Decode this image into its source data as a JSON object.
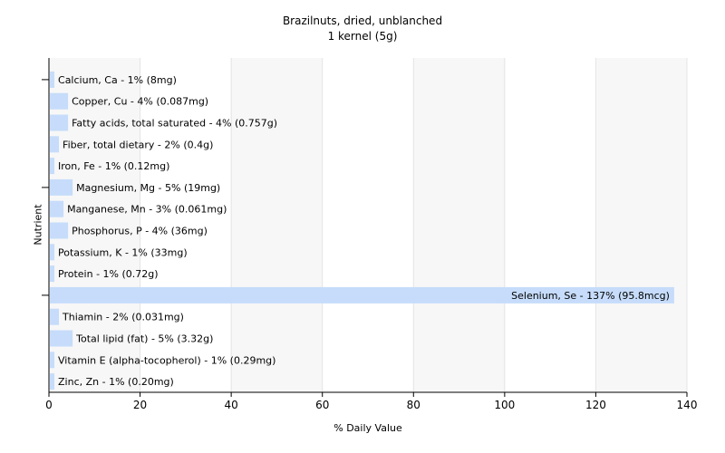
{
  "chart_data": {
    "type": "bar",
    "orientation": "horizontal",
    "title": "Brazilnuts, dried, unblanched",
    "subtitle": "1 kernel (5g)",
    "xlabel": "% Daily Value",
    "ylabel": "Nutrient",
    "xlim": [
      0,
      140
    ],
    "xticks": [
      0,
      20,
      40,
      60,
      80,
      100,
      120,
      140
    ],
    "grid": "vertical",
    "colors": {
      "bar": "#c6dcfa",
      "grid": "#e4e4e4",
      "axis": "#000000",
      "band": "#f7f7f7"
    },
    "categories": [
      "Calcium, Ca",
      "Copper, Cu",
      "Fatty acids, total saturated",
      "Fiber, total dietary",
      "Iron, Fe",
      "Magnesium, Mg",
      "Manganese, Mn",
      "Phosphorus, P",
      "Potassium, K",
      "Protein",
      "Selenium, Se",
      "Thiamin",
      "Total lipid (fat)",
      "Vitamin E (alpha-tocopherol)",
      "Zinc, Zn"
    ],
    "values": [
      1,
      4,
      4,
      2,
      1,
      5,
      3,
      4,
      1,
      1,
      137,
      2,
      5,
      1,
      1
    ],
    "labels": [
      "Calcium, Ca - 1% (8mg)",
      "Copper, Cu - 4% (0.087mg)",
      "Fatty acids, total saturated - 4% (0.757g)",
      "Fiber, total dietary - 2% (0.4g)",
      "Iron, Fe - 1% (0.12mg)",
      "Magnesium, Mg - 5% (19mg)",
      "Manganese, Mn - 3% (0.061mg)",
      "Phosphorus, P - 4% (36mg)",
      "Potassium, K - 1% (33mg)",
      "Protein - 1% (0.72g)",
      "Selenium, Se - 137% (95.8mcg)",
      "Thiamin - 2% (0.031mg)",
      "Total lipid (fat) - 5% (3.32g)",
      "Vitamin E (alpha-tocopherol) - 1% (0.29mg)",
      "Zinc, Zn - 1% (0.20mg)"
    ]
  }
}
